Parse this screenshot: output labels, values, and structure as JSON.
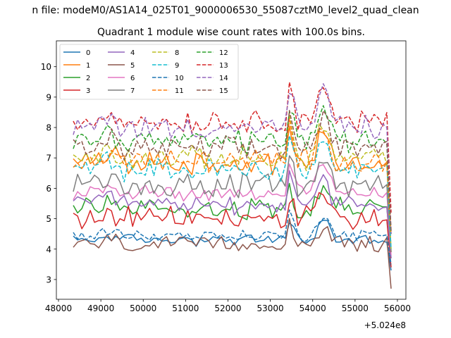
{
  "figure": {
    "suptitle": "n file: modeM0/AS1A14_025T01_9000006530_55087cztM0_level2_quad_clean",
    "offset_label": "+5.024e8"
  },
  "chart_data": {
    "type": "line",
    "title": "Quadrant 1 module wise count rates with 100.0s bins.",
    "xlabel": "",
    "ylabel": "",
    "x_offset": 502400000,
    "xlim": [
      47950,
      56200
    ],
    "ylim": [
      2.35,
      10.85
    ],
    "x_start": 48350,
    "x_step": 100,
    "xticks": [
      48000,
      49000,
      50000,
      51000,
      52000,
      53000,
      54000,
      55000,
      56000
    ],
    "xtick_labels": [
      "48000",
      "49000",
      "50000",
      "51000",
      "52000",
      "53000",
      "54000",
      "55000",
      "56000"
    ],
    "yticks": [
      3,
      4,
      5,
      6,
      7,
      8,
      9,
      10
    ],
    "ytick_labels": [
      "3",
      "4",
      "5",
      "6",
      "7",
      "8",
      "9",
      "10"
    ],
    "grid": false,
    "legend_location": "top-left",
    "legend_columns": 4,
    "series": [
      {
        "name": "0",
        "color": "#1f77b4",
        "style": "solid",
        "base": 4.3,
        "noise": 0.15,
        "end": 3.3
      },
      {
        "name": "1",
        "color": "#ff7f0e",
        "style": "solid",
        "base": 6.85,
        "noise": 0.3,
        "end": 3.9
      },
      {
        "name": "2",
        "color": "#2ca02c",
        "style": "solid",
        "base": 5.35,
        "noise": 0.3,
        "end": 3.7
      },
      {
        "name": "3",
        "color": "#d62728",
        "style": "solid",
        "base": 5.0,
        "noise": 0.3,
        "end": 3.4
      },
      {
        "name": "4",
        "color": "#9467bd",
        "style": "solid",
        "base": 5.45,
        "noise": 0.25,
        "end": 3.7
      },
      {
        "name": "5",
        "color": "#8c564b",
        "style": "solid",
        "base": 4.15,
        "noise": 0.2,
        "end": 2.7
      },
      {
        "name": "6",
        "color": "#e377c2",
        "style": "solid",
        "base": 5.85,
        "noise": 0.2,
        "end": 3.8
      },
      {
        "name": "7",
        "color": "#7f7f7f",
        "style": "solid",
        "base": 6.1,
        "noise": 0.3,
        "end": 3.9
      },
      {
        "name": "8",
        "color": "#bcbd22",
        "style": "dashed",
        "base": 7.0,
        "noise": 0.3,
        "end": 4.0
      },
      {
        "name": "9",
        "color": "#17becf",
        "style": "dashed",
        "base": 6.6,
        "noise": 0.3,
        "end": 4.0
      },
      {
        "name": "10",
        "color": "#1f77b4",
        "style": "dashed",
        "base": 4.45,
        "noise": 0.15,
        "end": 3.5
      },
      {
        "name": "11",
        "color": "#ff7f0e",
        "style": "dashed",
        "base": 6.9,
        "noise": 0.3,
        "end": 4.5
      },
      {
        "name": "12",
        "color": "#2ca02c",
        "style": "dashed",
        "base": 7.55,
        "noise": 0.3,
        "end": 4.5
      },
      {
        "name": "13",
        "color": "#d62728",
        "style": "dashed",
        "base": 8.2,
        "noise": 0.3,
        "end": 5.2
      },
      {
        "name": "14",
        "color": "#9467bd",
        "style": "dashed",
        "base": 8.0,
        "noise": 0.3,
        "end": 4.5
      },
      {
        "name": "15",
        "color": "#8c564b",
        "style": "dashed",
        "base": 7.3,
        "noise": 0.3,
        "end": 4.6
      }
    ]
  }
}
